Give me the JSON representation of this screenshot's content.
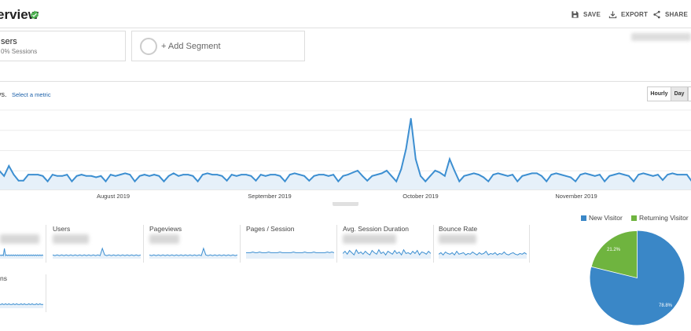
{
  "header": {
    "title": "erview",
    "save_label": "SAVE",
    "export_label": "EXPORT",
    "share_label": "SHARE"
  },
  "segments": {
    "primary_name": "sers",
    "primary_sub": "0% Sessions",
    "add_label": "+ Add Segment"
  },
  "metric_bar": {
    "prefix": "vs.",
    "select_metric": "Select a metric",
    "hourly_label": "Hourly",
    "day_label": "Day"
  },
  "colors": {
    "line": "#3d8fd1",
    "fill": "#e6f0f9",
    "new_visitor": "#3a87c7",
    "returning_visitor": "#6fb43f",
    "verified": "#4caf50"
  },
  "chart_data": {
    "type": "area",
    "series": [
      {
        "values": [
          28,
          20,
          35,
          22,
          13,
          13,
          22,
          22,
          22,
          20,
          12,
          22,
          20,
          20,
          22,
          12,
          20,
          22,
          20,
          20,
          18,
          20,
          12,
          22,
          20,
          22,
          24,
          22,
          12,
          20,
          22,
          20,
          22,
          20,
          12,
          20,
          24,
          20,
          22,
          22,
          20,
          12,
          22,
          24,
          22,
          22,
          20,
          13,
          22,
          20,
          22,
          22,
          20,
          13,
          22,
          20,
          22,
          22,
          20,
          12,
          22,
          24,
          22,
          20,
          13,
          20,
          22,
          22,
          20,
          22,
          12,
          20,
          22,
          25,
          28,
          20,
          13,
          20,
          22,
          24,
          28,
          20,
          12,
          30,
          60,
          105,
          45,
          20,
          12,
          20,
          28,
          25,
          20,
          45,
          28,
          12,
          20,
          22,
          24,
          22,
          18,
          12,
          22,
          24,
          22,
          20,
          22,
          12,
          20,
          22,
          24,
          24,
          20,
          12,
          22,
          24,
          22,
          20,
          18,
          12,
          22,
          24,
          22,
          20,
          22,
          12,
          20,
          22,
          24,
          22,
          20,
          12,
          22,
          24,
          22,
          20,
          22,
          14,
          22,
          24,
          22,
          22,
          22,
          12
        ]
      }
    ],
    "ylim": [
      0,
      120
    ],
    "x_ticks": [
      "August 2019",
      "September 2019",
      "October 2019",
      "November 2019"
    ],
    "grid": true
  },
  "metrics": [
    {
      "label": "",
      "spark": [
        3,
        2,
        3,
        2,
        12,
        2,
        3,
        2,
        3,
        2,
        3,
        2,
        3,
        2,
        3,
        2,
        3,
        2,
        3,
        2,
        3,
        2,
        3,
        2,
        3,
        2,
        3,
        2,
        3,
        2,
        3,
        2,
        3,
        2,
        3,
        2,
        3,
        2,
        3,
        2
      ]
    },
    {
      "label": "Users",
      "spark": [
        3,
        2,
        3,
        2,
        3,
        2,
        3,
        2,
        3,
        2,
        3,
        2,
        3,
        2,
        3,
        2,
        3,
        2,
        3,
        2,
        3,
        2,
        12,
        3,
        2,
        3,
        2,
        3,
        2,
        3,
        2,
        3,
        2,
        3,
        2,
        3,
        2,
        3,
        2,
        3
      ]
    },
    {
      "label": "Pageviews",
      "spark": [
        3,
        2,
        3,
        2,
        3,
        2,
        3,
        2,
        3,
        2,
        3,
        2,
        3,
        2,
        3,
        2,
        3,
        2,
        3,
        2,
        3,
        2,
        3,
        2,
        12,
        3,
        2,
        3,
        2,
        3,
        2,
        3,
        2,
        3,
        2,
        3,
        2,
        3,
        2,
        3
      ]
    },
    {
      "label": "Pages / Session",
      "spark": [
        6,
        6,
        6,
        7,
        6,
        6,
        7,
        6,
        6,
        6,
        7,
        6,
        6,
        6,
        6,
        7,
        6,
        6,
        6,
        6,
        6,
        7,
        6,
        6,
        6,
        6,
        7,
        6,
        6,
        6,
        7,
        6,
        6,
        6,
        6,
        6,
        7,
        6,
        7,
        6
      ]
    },
    {
      "label": "Avg. Session Duration",
      "spark": [
        5,
        8,
        4,
        9,
        6,
        3,
        10,
        5,
        7,
        4,
        8,
        5,
        3,
        9,
        6,
        4,
        10,
        5,
        7,
        3,
        8,
        6,
        4,
        9,
        5,
        7,
        3,
        10,
        5,
        6,
        4,
        8,
        5,
        9,
        3,
        7,
        6,
        4,
        8,
        5
      ]
    },
    {
      "label": "Bounce Rate",
      "spark": [
        4,
        6,
        3,
        7,
        5,
        4,
        6,
        3,
        8,
        4,
        5,
        6,
        3,
        5,
        4,
        7,
        5,
        3,
        6,
        4,
        5,
        8,
        3,
        5,
        4,
        6,
        3,
        5,
        4,
        7,
        4,
        3,
        5,
        6,
        4,
        3,
        5,
        4,
        6,
        4
      ]
    },
    {
      "label": "ns",
      "spark": [
        3,
        3,
        4,
        3,
        3,
        4,
        3,
        3,
        4,
        3,
        3,
        3,
        4,
        3,
        3,
        4,
        3,
        3,
        3,
        4,
        3,
        3,
        4,
        3,
        3,
        3,
        4,
        3,
        3,
        4,
        3,
        3,
        3,
        4,
        3,
        3,
        4,
        3,
        3,
        3
      ]
    }
  ],
  "pie": {
    "legend_new": "New Visitor",
    "legend_returning": "Returning Visitor",
    "new_label": "78.8%",
    "returning_label": "21.2%",
    "new_value": 78.8,
    "returning_value": 21.2
  }
}
